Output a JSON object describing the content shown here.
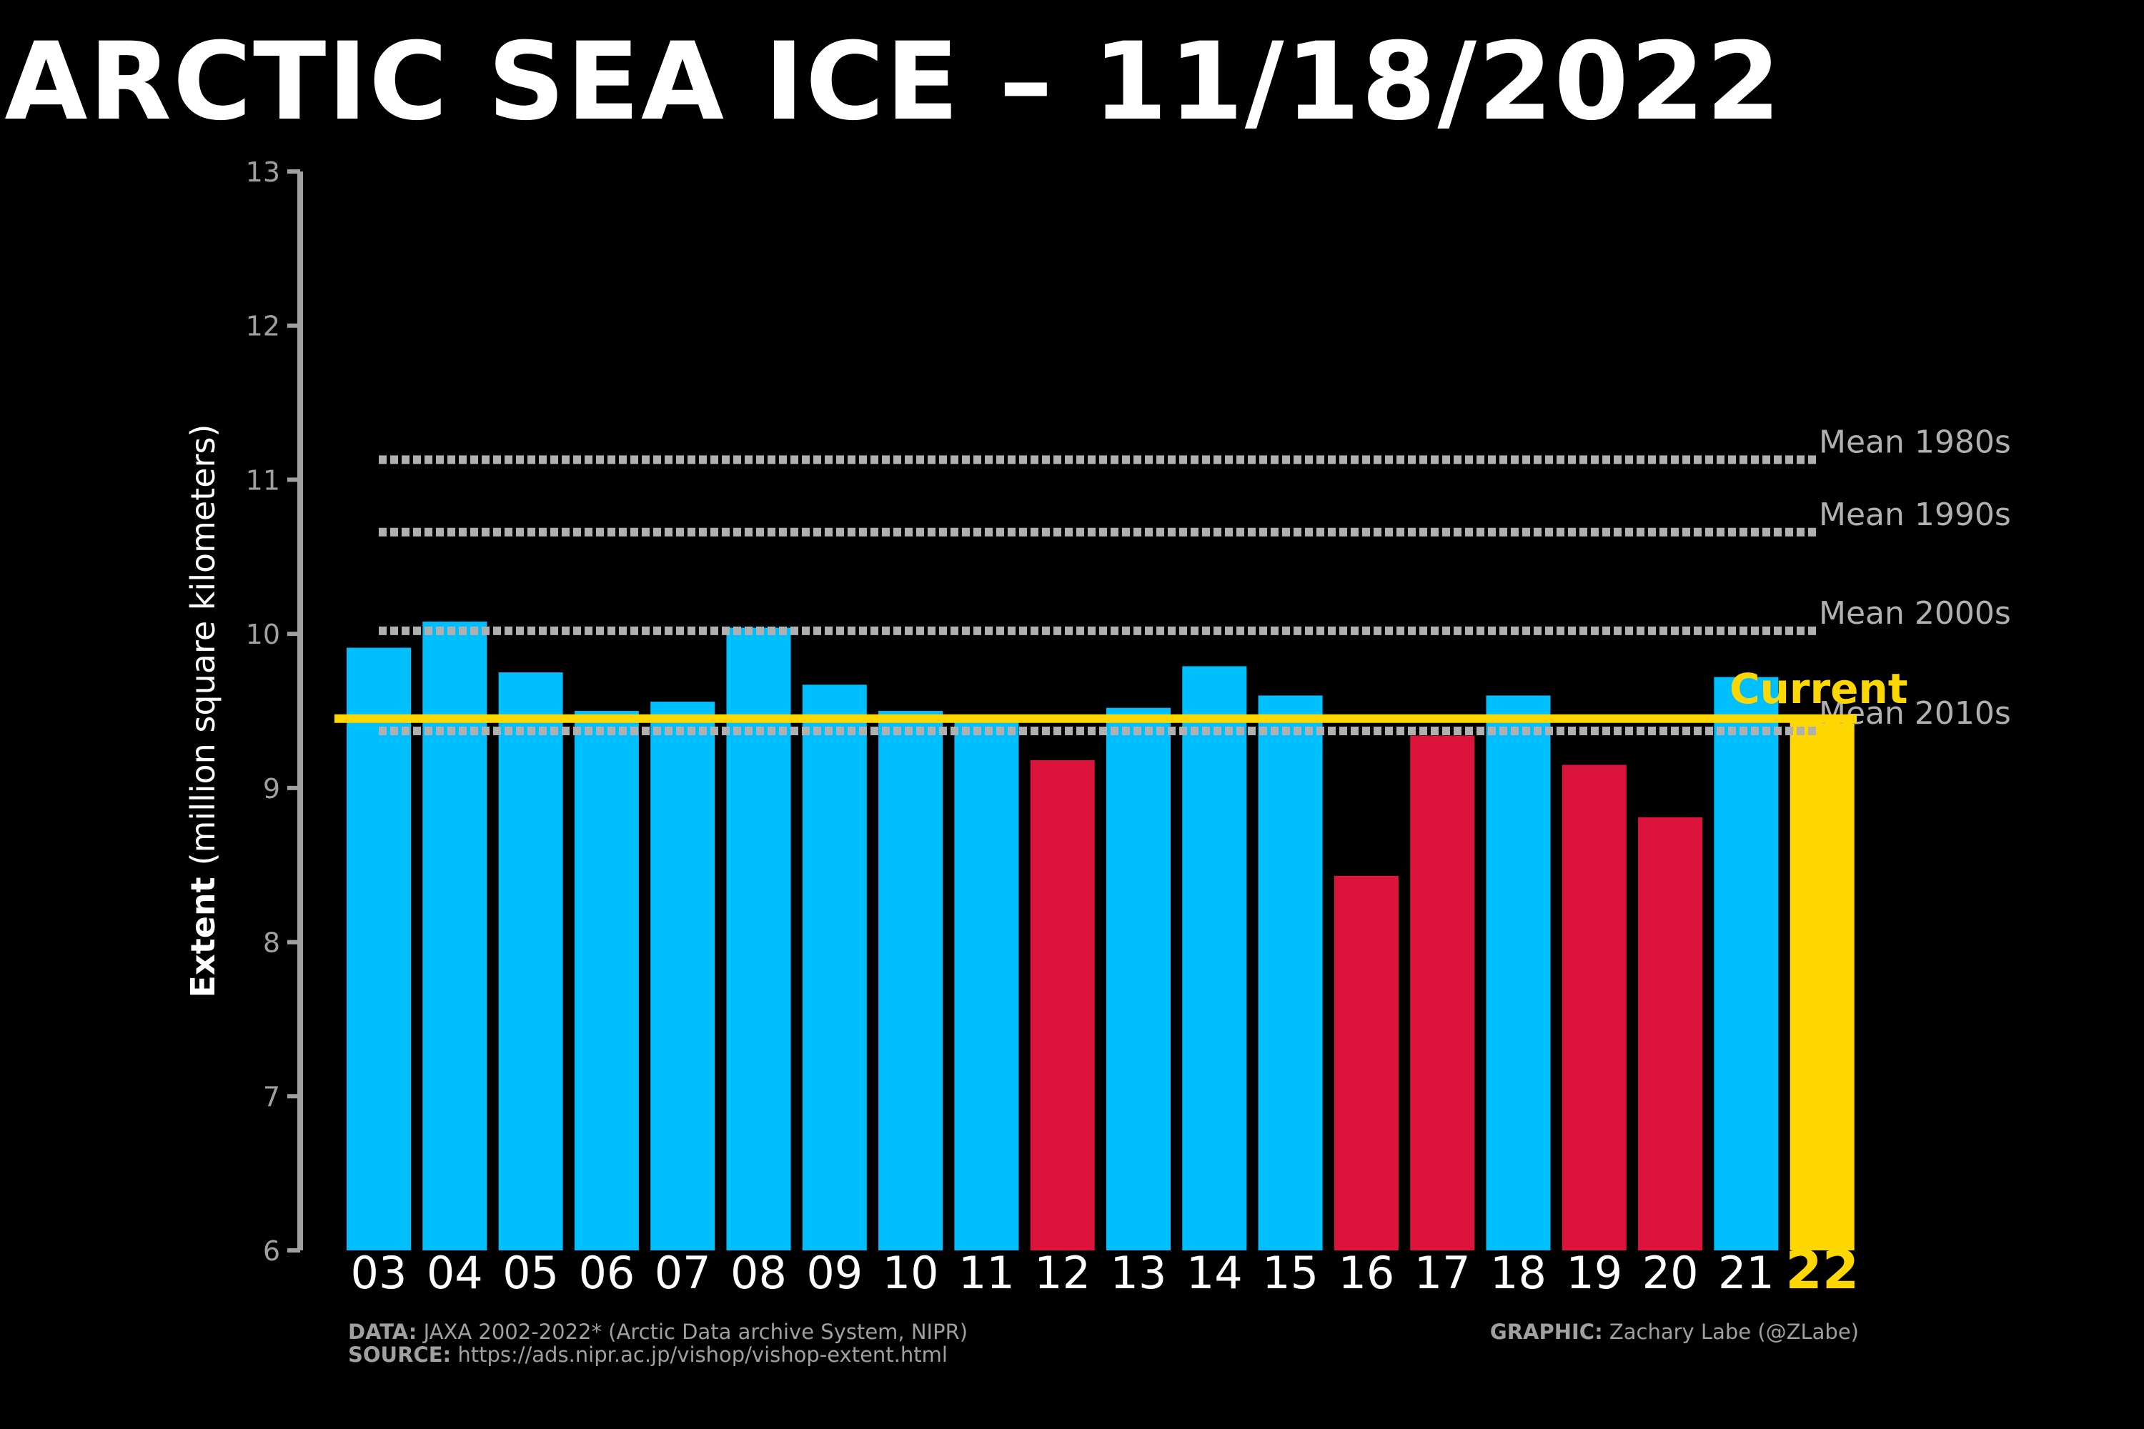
{
  "title": "ARCTIC SEA ICE – 11/18/2022",
  "chart_data": {
    "type": "bar",
    "title": "ARCTIC SEA ICE – 11/18/2022",
    "ylabel_bold": "Extent",
    "ylabel_rest": "(million square kilometers)",
    "ylim": [
      6,
      13
    ],
    "yticks": [
      "6",
      "7",
      "8",
      "9",
      "10",
      "11",
      "12",
      "13"
    ],
    "categories": [
      "03",
      "04",
      "05",
      "06",
      "07",
      "08",
      "09",
      "10",
      "11",
      "12",
      "13",
      "14",
      "15",
      "16",
      "17",
      "18",
      "19",
      "20",
      "21",
      "22"
    ],
    "values": [
      9.91,
      10.08,
      9.75,
      9.5,
      9.56,
      10.04,
      9.67,
      9.5,
      9.45,
      9.18,
      9.52,
      9.79,
      9.6,
      8.43,
      9.34,
      9.6,
      9.15,
      8.81,
      9.72,
      9.45
    ],
    "bar_colors": [
      "#00bfff",
      "#00bfff",
      "#00bfff",
      "#00bfff",
      "#00bfff",
      "#00bfff",
      "#00bfff",
      "#00bfff",
      "#00bfff",
      "#dc143c",
      "#00bfff",
      "#00bfff",
      "#00bfff",
      "#dc143c",
      "#dc143c",
      "#00bfff",
      "#dc143c",
      "#dc143c",
      "#00bfff",
      "#ffd700"
    ],
    "reference_lines": [
      {
        "label": "Mean 1980s",
        "value": 11.13
      },
      {
        "label": "Mean 1990s",
        "value": 10.66
      },
      {
        "label": "Mean 2000s",
        "value": 10.02
      },
      {
        "label": "Mean 2010s",
        "value": 9.37
      }
    ],
    "current": {
      "label": "Current",
      "value": 9.45
    },
    "colors": {
      "above": "#00bfff",
      "below": "#dc143c",
      "current": "#ffd700",
      "reference": "#b0b0b0",
      "axis": "#a0a0a0"
    },
    "grid": false
  },
  "footer": {
    "data_label": "DATA:",
    "data_text": " JAXA 2002-2022* (Arctic Data archive System, NIPR)",
    "source_label": "SOURCE:",
    "source_text": " https://ads.nipr.ac.jp/vishop/vishop-extent.html",
    "graphic_label": "GRAPHIC:",
    "graphic_text": " Zachary Labe (@ZLabe)"
  }
}
